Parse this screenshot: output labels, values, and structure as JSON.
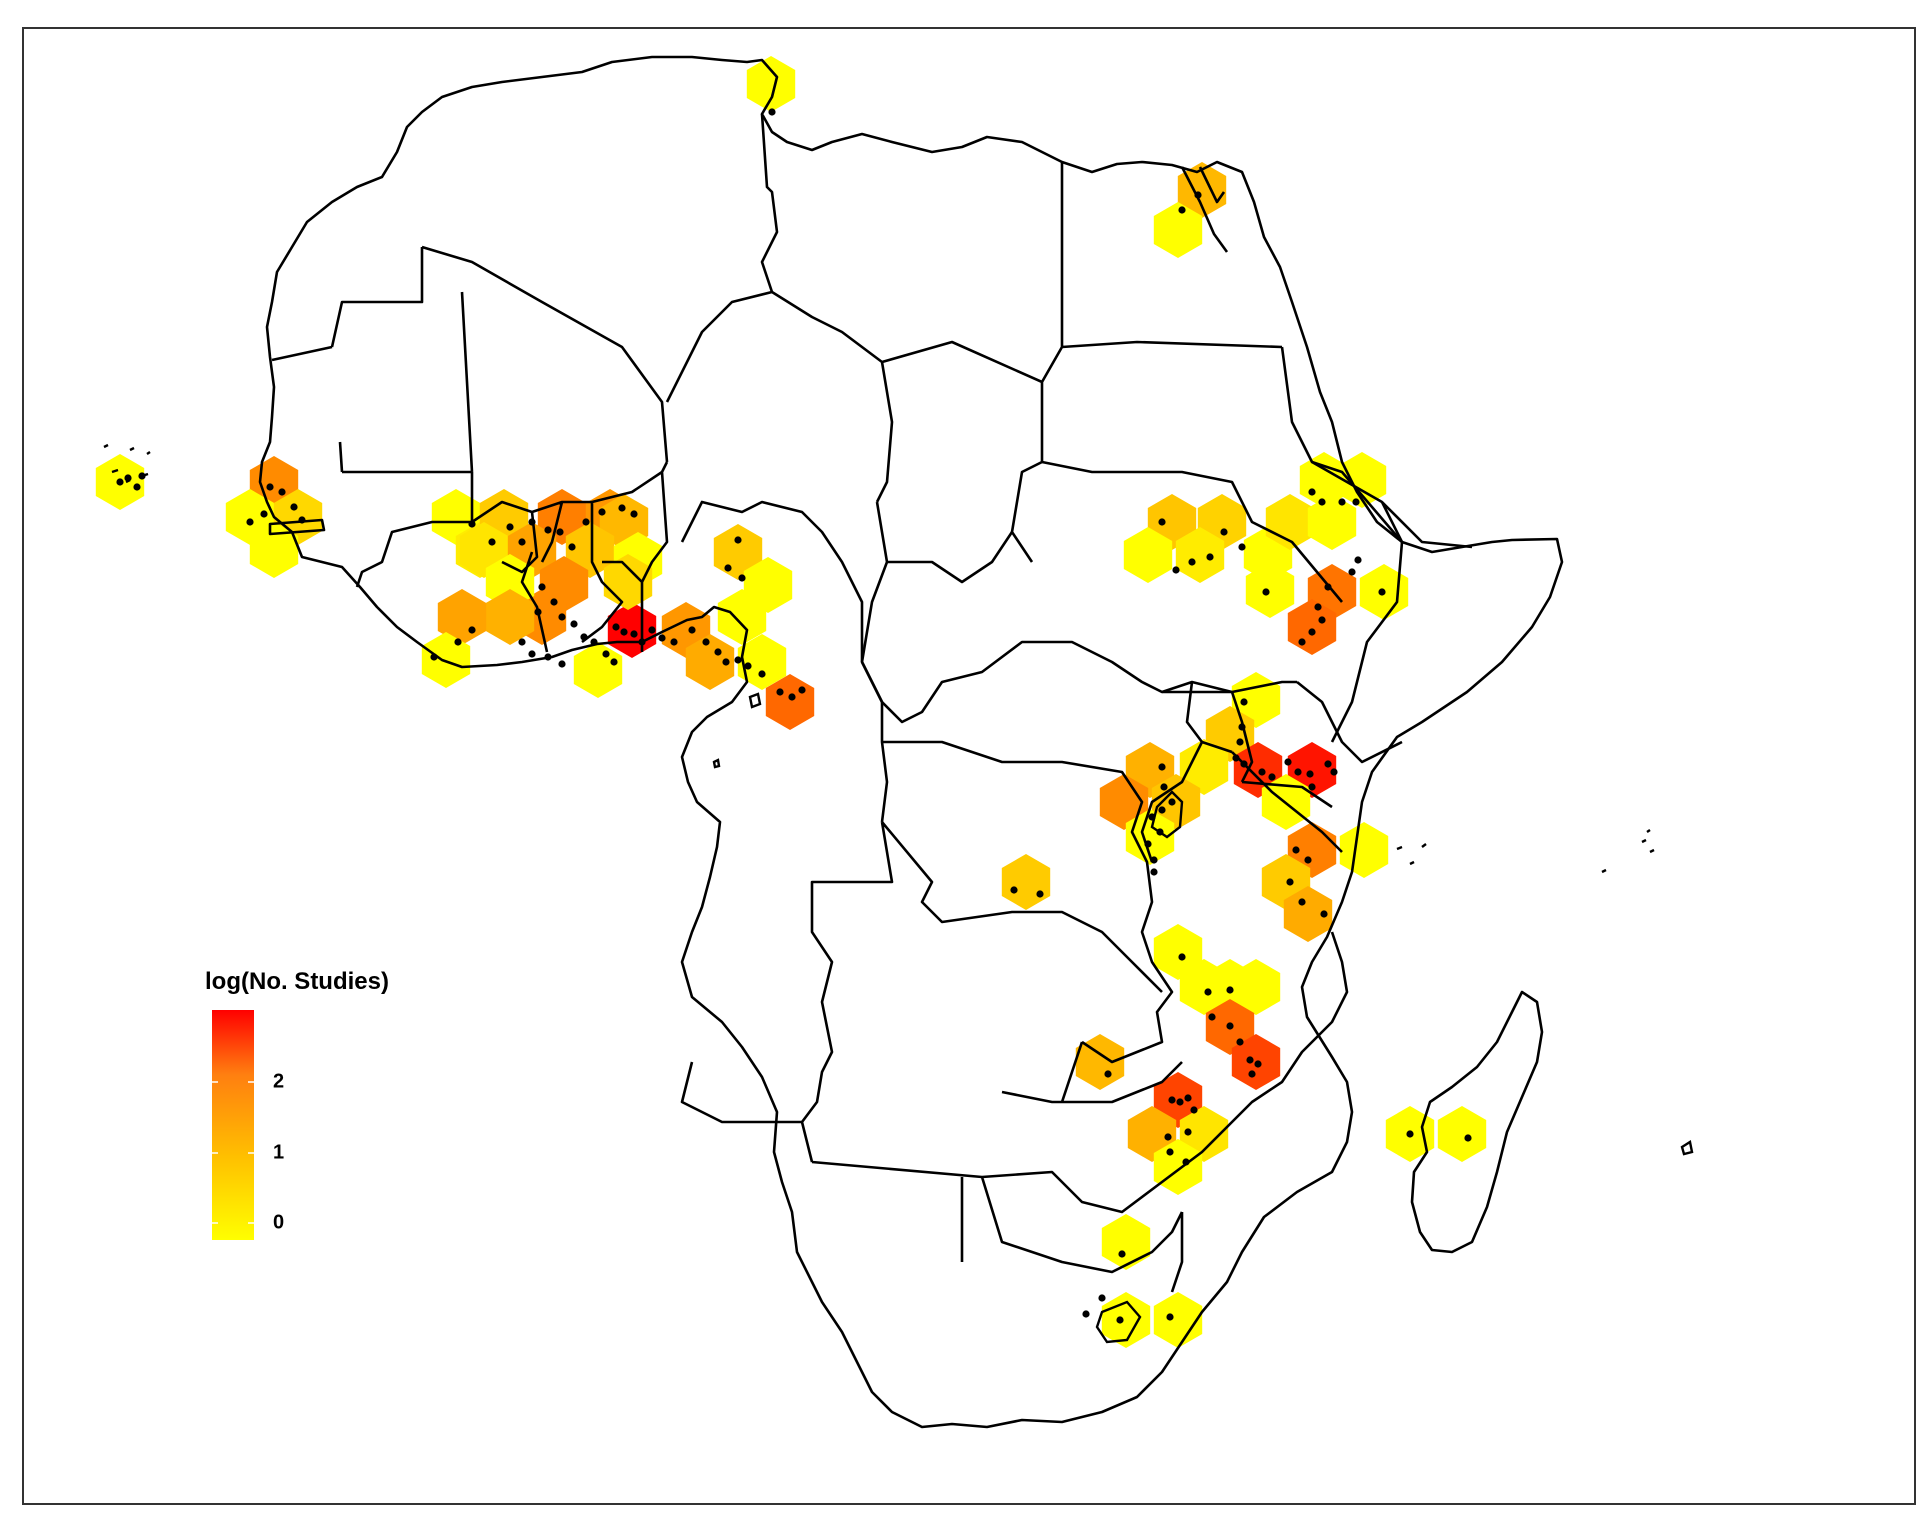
{
  "legend": {
    "title": "log(No. Studies)",
    "ticks": [
      "0",
      "1",
      "2"
    ],
    "max_value": 2.77,
    "color_low": "#FFFF00",
    "color_mid": "#FFA500",
    "color_high": "#FF0000"
  },
  "map": {
    "region": "Africa",
    "hex_levels": [
      {
        "name": "cape-verde",
        "level": 0.0
      },
      {
        "name": "senegal-north",
        "level": 1.6
      },
      {
        "name": "senegal-south",
        "level": 0.0
      },
      {
        "name": "gambia",
        "level": 0.6
      },
      {
        "name": "guinea-bissau",
        "level": 0.0
      },
      {
        "name": "mali-west",
        "level": 0.0
      },
      {
        "name": "mali-south",
        "level": 0.3
      },
      {
        "name": "burkina-west",
        "level": 0.8
      },
      {
        "name": "burkina-central",
        "level": 1.7
      },
      {
        "name": "burkina-east",
        "level": 1.5
      },
      {
        "name": "burkina-ne",
        "level": 1.1
      },
      {
        "name": "niger-sw",
        "level": 0.4
      },
      {
        "name": "ghana-north",
        "level": 1.4
      },
      {
        "name": "ghana-ne",
        "level": 0.9
      },
      {
        "name": "ghana-central",
        "level": 1.6
      },
      {
        "name": "ghana-south",
        "level": 1.6
      },
      {
        "name": "ghana-coast",
        "level": 0.0
      },
      {
        "name": "ivory-north",
        "level": 0.0
      },
      {
        "name": "ivory-central",
        "level": 1.2
      },
      {
        "name": "ivory-west",
        "level": 1.4
      },
      {
        "name": "ivory-coast-s",
        "level": 0.0
      },
      {
        "name": "togo-benin",
        "level": 2.8
      },
      {
        "name": "benin-north",
        "level": 0.0
      },
      {
        "name": "benin-south",
        "level": 0.6
      },
      {
        "name": "nigeria-sw",
        "level": 1.5
      },
      {
        "name": "nigeria-s",
        "level": 1.3
      },
      {
        "name": "nigeria-n",
        "level": 0.8
      },
      {
        "name": "nigeria-ne",
        "level": 0.0
      },
      {
        "name": "nigeria-c",
        "level": 0.0
      },
      {
        "name": "nigeria-se",
        "level": 0.0
      },
      {
        "name": "cameroon",
        "level": 1.9
      },
      {
        "name": "tunisia",
        "level": 0.0
      },
      {
        "name": "egypt-n",
        "level": 1.1
      },
      {
        "name": "egypt-s",
        "level": 0.0
      },
      {
        "name": "sudan-w",
        "level": 0.9
      },
      {
        "name": "sudan-e",
        "level": 0.7
      },
      {
        "name": "sudan-sw",
        "level": 0.0
      },
      {
        "name": "sudan-se",
        "level": 0.3
      },
      {
        "name": "ethiopia-n1",
        "level": 0.0
      },
      {
        "name": "ethiopia-n2",
        "level": 0.0
      },
      {
        "name": "ethiopia-nw",
        "level": 0.0
      },
      {
        "name": "ethiopia-c1",
        "level": 0.4
      },
      {
        "name": "ethiopia-c2",
        "level": 0.0
      },
      {
        "name": "ethiopia-c3",
        "level": 1.8
      },
      {
        "name": "ethiopia-e",
        "level": 0.0
      },
      {
        "name": "ethiopia-s",
        "level": 1.9
      },
      {
        "name": "ethiopia-sw",
        "level": 0.0
      },
      {
        "name": "uganda-n",
        "level": 0.0
      },
      {
        "name": "uganda-c",
        "level": 0.8
      },
      {
        "name": "uganda-s",
        "level": 0.3
      },
      {
        "name": "kenya-w",
        "level": 2.4
      },
      {
        "name": "kenya-c",
        "level": 2.6
      },
      {
        "name": "kenya-e",
        "level": 0.0
      },
      {
        "name": "lake-victoria-n",
        "level": 1.2
      },
      {
        "name": "lake-victoria-w",
        "level": 1.6
      },
      {
        "name": "lake-victoria-c",
        "level": 0.9
      },
      {
        "name": "tanzania-n",
        "level": 0.0
      },
      {
        "name": "tanzania-ne",
        "level": 1.7
      },
      {
        "name": "tanzania-coast",
        "level": 0.0
      },
      {
        "name": "tanzania-e",
        "level": 0.8
      },
      {
        "name": "tanzania-se",
        "level": 1.3
      },
      {
        "name": "drc-central",
        "level": 0.8
      },
      {
        "name": "tanzania-sw",
        "level": 0.0
      },
      {
        "name": "malawi-n1",
        "level": 0.0
      },
      {
        "name": "malawi-n2",
        "level": 0.0
      },
      {
        "name": "malawi-n3",
        "level": 0.0
      },
      {
        "name": "malawi-c",
        "level": 1.9
      },
      {
        "name": "malawi-s",
        "level": 2.2
      },
      {
        "name": "zambia",
        "level": 1.1
      },
      {
        "name": "zimbabwe-n",
        "level": 2.2
      },
      {
        "name": "zimbabwe-c",
        "level": 1.2
      },
      {
        "name": "zimbabwe-e",
        "level": 0.4
      },
      {
        "name": "zimbabwe-s",
        "level": 0.0
      },
      {
        "name": "botswana-za",
        "level": 0.0
      },
      {
        "name": "lesotho",
        "level": 0.0
      },
      {
        "name": "swaziland",
        "level": 0.0
      },
      {
        "name": "madagascar-w",
        "level": 0.0
      },
      {
        "name": "madagascar-e",
        "level": 0.0
      }
    ]
  }
}
